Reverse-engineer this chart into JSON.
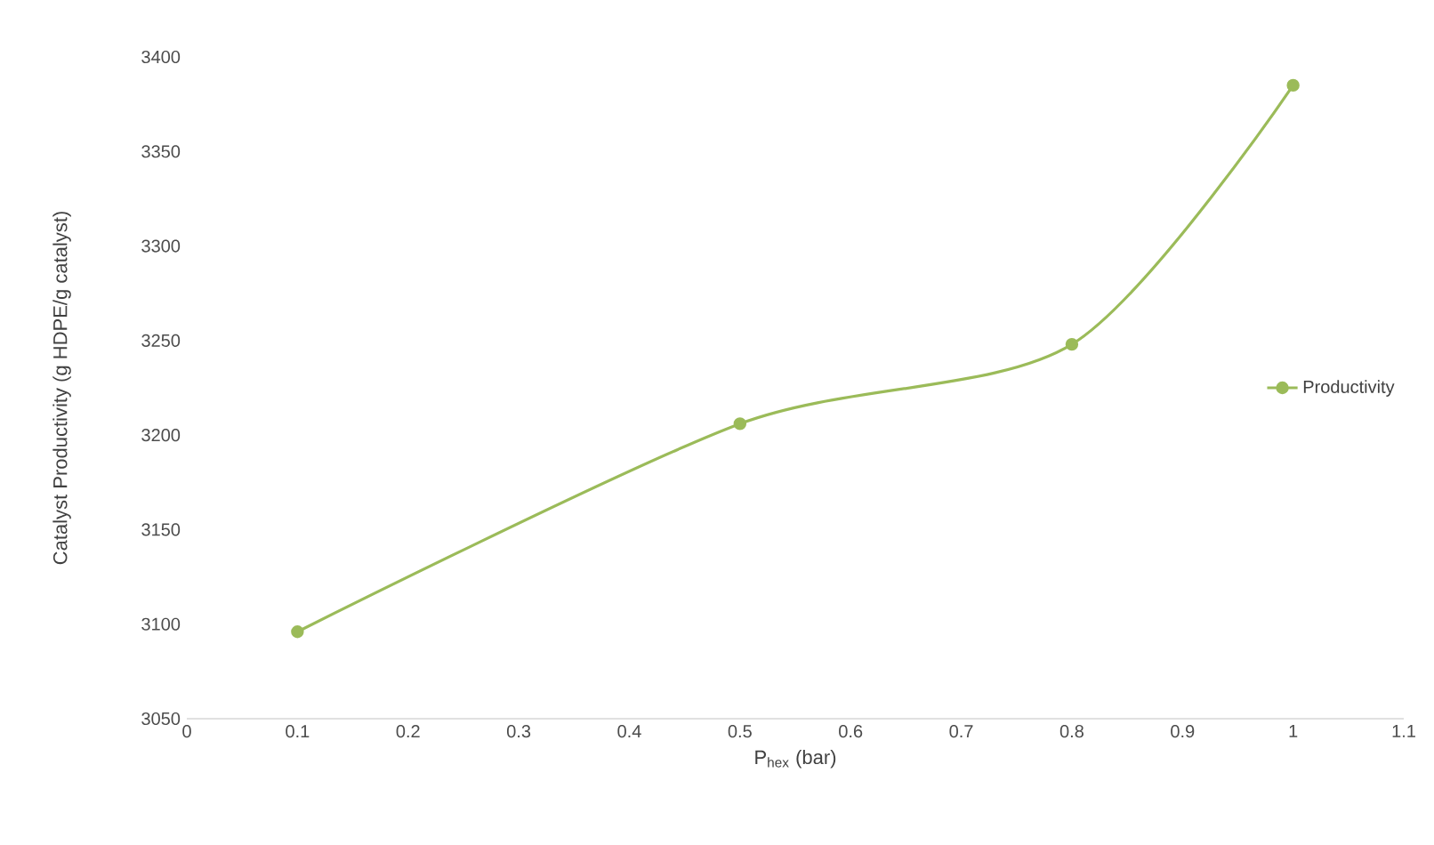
{
  "chart_data": {
    "type": "line",
    "xlabel": "P$_{hex}$ (bar)",
    "ylabel": "Catalyst Productivity (g HDPE/g catalyst)",
    "x": [
      0.1,
      0.5,
      0.8,
      1.0
    ],
    "series": [
      {
        "name": "Productivity",
        "color": "#9bbb59",
        "values": [
          3096,
          3206,
          3248,
          3385
        ]
      }
    ],
    "xlim": [
      0,
      1.1
    ],
    "xticks": [
      0,
      0.1,
      0.2,
      0.3,
      0.4,
      0.5,
      0.6,
      0.7,
      0.8,
      0.9,
      1,
      1.1
    ],
    "ylim": [
      3050,
      3400
    ],
    "yticks": [
      3050,
      3100,
      3150,
      3200,
      3250,
      3300,
      3350,
      3400
    ],
    "grid": false,
    "legend": "right",
    "marker": "circle",
    "line_style": "solid"
  }
}
